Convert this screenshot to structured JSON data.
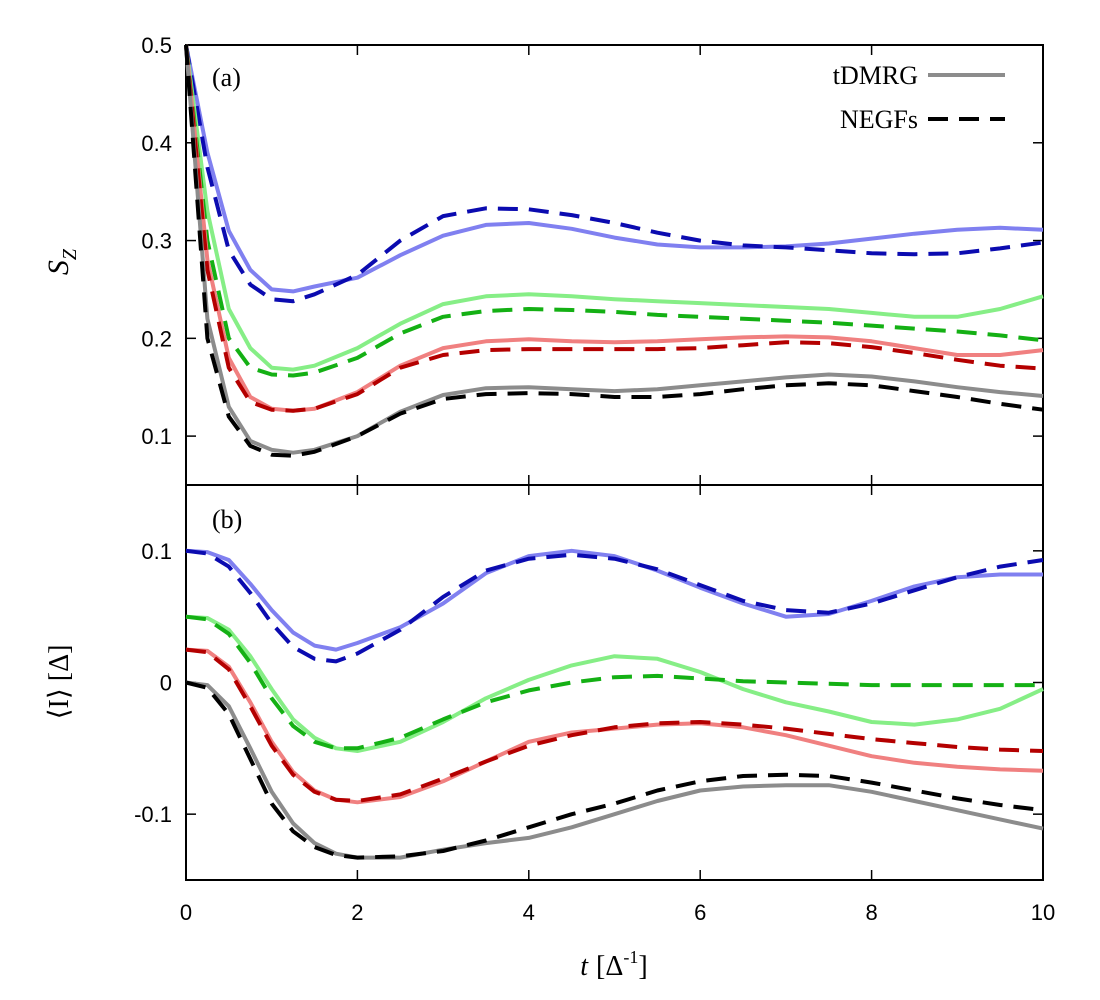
{
  "chart_data": [
    {
      "type": "line",
      "panel": "(a)",
      "ylabel": "S",
      "ylabel_sub": "Z",
      "xlim": [
        0,
        10
      ],
      "ylim": [
        0.05,
        0.5
      ],
      "xticks": [
        "0",
        "2",
        "4",
        "6",
        "8",
        "10"
      ],
      "yticks": [
        {
          "value": 0.1,
          "label": "0.1"
        },
        {
          "value": 0.2,
          "label": "0.2"
        },
        {
          "value": 0.3,
          "label": "0.3"
        },
        {
          "value": 0.4,
          "label": "0.4"
        },
        {
          "value": 0.5,
          "label": "0.5"
        }
      ],
      "legend": {
        "position": "top-right",
        "entries": [
          {
            "label": "tDMRG",
            "style": "solid",
            "color": "#8c8c8c"
          },
          {
            "label": "NEGFs",
            "style": "dashed",
            "color": "#000000"
          }
        ]
      },
      "x": [
        0,
        0.25,
        0.5,
        0.75,
        1,
        1.25,
        1.5,
        2,
        2.5,
        3,
        3.5,
        4,
        4.5,
        5,
        5.5,
        6,
        6.5,
        7,
        7.5,
        8,
        8.5,
        9,
        9.5,
        10
      ],
      "series": [
        {
          "name": "blue tDMRG",
          "color": "#8080f0",
          "style": "solid",
          "values": [
            0.5,
            0.39,
            0.31,
            0.27,
            0.25,
            0.248,
            0.253,
            0.262,
            0.285,
            0.305,
            0.316,
            0.318,
            0.312,
            0.303,
            0.296,
            0.293,
            0.293,
            0.294,
            0.297,
            0.302,
            0.307,
            0.311,
            0.313,
            0.311
          ]
        },
        {
          "name": "blue NEGFs",
          "color": "#0b0bb0",
          "style": "dashed",
          "values": [
            0.5,
            0.375,
            0.29,
            0.255,
            0.24,
            0.238,
            0.245,
            0.265,
            0.3,
            0.325,
            0.333,
            0.332,
            0.326,
            0.318,
            0.308,
            0.3,
            0.295,
            0.293,
            0.29,
            0.287,
            0.286,
            0.287,
            0.292,
            0.298
          ]
        },
        {
          "name": "green tDMRG",
          "color": "#86ee86",
          "style": "solid",
          "values": [
            0.5,
            0.33,
            0.23,
            0.19,
            0.17,
            0.168,
            0.172,
            0.19,
            0.215,
            0.235,
            0.243,
            0.245,
            0.243,
            0.24,
            0.238,
            0.236,
            0.234,
            0.232,
            0.23,
            0.226,
            0.222,
            0.222,
            0.23,
            0.243
          ]
        },
        {
          "name": "green NEGFs",
          "color": "#14b014",
          "style": "dashed",
          "values": [
            0.5,
            0.3,
            0.2,
            0.17,
            0.163,
            0.162,
            0.165,
            0.18,
            0.205,
            0.222,
            0.228,
            0.23,
            0.229,
            0.227,
            0.224,
            0.222,
            0.22,
            0.218,
            0.216,
            0.213,
            0.21,
            0.207,
            0.203,
            0.198
          ]
        },
        {
          "name": "red tDMRG",
          "color": "#f08080",
          "style": "solid",
          "values": [
            0.5,
            0.28,
            0.18,
            0.14,
            0.128,
            0.126,
            0.128,
            0.145,
            0.172,
            0.19,
            0.197,
            0.199,
            0.197,
            0.196,
            0.197,
            0.199,
            0.201,
            0.202,
            0.201,
            0.197,
            0.19,
            0.183,
            0.183,
            0.188
          ]
        },
        {
          "name": "red NEGFs",
          "color": "#b40000",
          "style": "dashed",
          "values": [
            0.5,
            0.27,
            0.17,
            0.135,
            0.127,
            0.126,
            0.128,
            0.143,
            0.17,
            0.183,
            0.188,
            0.189,
            0.189,
            0.189,
            0.189,
            0.19,
            0.193,
            0.196,
            0.195,
            0.191,
            0.185,
            0.178,
            0.172,
            0.169
          ]
        },
        {
          "name": "gray tDMRG",
          "color": "#8c8c8c",
          "style": "solid",
          "values": [
            0.5,
            0.22,
            0.13,
            0.095,
            0.086,
            0.083,
            0.086,
            0.1,
            0.125,
            0.142,
            0.149,
            0.15,
            0.148,
            0.146,
            0.148,
            0.152,
            0.156,
            0.16,
            0.163,
            0.161,
            0.156,
            0.15,
            0.145,
            0.141
          ]
        },
        {
          "name": "gray NEGFs",
          "color": "#000000",
          "style": "dashed",
          "values": [
            0.5,
            0.2,
            0.12,
            0.09,
            0.081,
            0.08,
            0.084,
            0.1,
            0.123,
            0.138,
            0.143,
            0.144,
            0.143,
            0.14,
            0.14,
            0.143,
            0.148,
            0.152,
            0.154,
            0.152,
            0.146,
            0.14,
            0.133,
            0.127
          ]
        }
      ]
    },
    {
      "type": "line",
      "panel": "(b)",
      "ylabel": "⟨I⟩  [Δ]",
      "xlabel": "t",
      "xlabel_unit": "[Δ",
      "xlabel_sup": "-1",
      "xlabel_close": "]",
      "xlim": [
        0,
        10
      ],
      "ylim": [
        -0.15,
        0.15
      ],
      "xticks": [
        "0",
        "2",
        "4",
        "6",
        "8",
        "10"
      ],
      "yticks": [
        {
          "value": -0.1,
          "label": "-0.1"
        },
        {
          "value": 0,
          "label": "0"
        },
        {
          "value": 0.1,
          "label": "0.1"
        }
      ],
      "x": [
        0,
        0.25,
        0.5,
        0.75,
        1,
        1.25,
        1.5,
        1.75,
        2,
        2.5,
        3,
        3.5,
        4,
        4.5,
        5,
        5.5,
        6,
        6.5,
        7,
        7.5,
        8,
        8.5,
        9,
        9.5,
        10
      ],
      "series": [
        {
          "name": "blue tDMRG",
          "color": "#8080f0",
          "style": "solid",
          "values": [
            0.1,
            0.099,
            0.093,
            0.075,
            0.055,
            0.038,
            0.028,
            0.025,
            0.03,
            0.042,
            0.06,
            0.083,
            0.096,
            0.1,
            0.096,
            0.085,
            0.072,
            0.06,
            0.05,
            0.052,
            0.062,
            0.073,
            0.08,
            0.082,
            0.082
          ]
        },
        {
          "name": "blue NEGFs",
          "color": "#0b0bb0",
          "style": "dashed",
          "values": [
            0.1,
            0.098,
            0.088,
            0.068,
            0.045,
            0.027,
            0.018,
            0.016,
            0.022,
            0.04,
            0.065,
            0.085,
            0.094,
            0.097,
            0.094,
            0.086,
            0.074,
            0.062,
            0.055,
            0.053,
            0.06,
            0.07,
            0.08,
            0.088,
            0.093
          ]
        },
        {
          "name": "green tDMRG",
          "color": "#86ee86",
          "style": "solid",
          "values": [
            0.05,
            0.049,
            0.04,
            0.02,
            -0.005,
            -0.028,
            -0.042,
            -0.05,
            -0.052,
            -0.045,
            -0.03,
            -0.012,
            0.002,
            0.013,
            0.02,
            0.018,
            0.008,
            -0.005,
            -0.015,
            -0.022,
            -0.03,
            -0.032,
            -0.028,
            -0.02,
            -0.005
          ]
        },
        {
          "name": "green NEGFs",
          "color": "#14b014",
          "style": "dashed",
          "values": [
            0.05,
            0.048,
            0.037,
            0.015,
            -0.012,
            -0.033,
            -0.045,
            -0.05,
            -0.05,
            -0.042,
            -0.028,
            -0.015,
            -0.006,
            0.0,
            0.004,
            0.005,
            0.003,
            0.001,
            0.0,
            -0.001,
            -0.002,
            -0.002,
            -0.002,
            -0.002,
            -0.002
          ]
        },
        {
          "name": "red tDMRG",
          "color": "#f08080",
          "style": "solid",
          "values": [
            0.025,
            0.024,
            0.012,
            -0.015,
            -0.045,
            -0.068,
            -0.082,
            -0.089,
            -0.091,
            -0.087,
            -0.075,
            -0.06,
            -0.045,
            -0.038,
            -0.035,
            -0.032,
            -0.031,
            -0.034,
            -0.04,
            -0.048,
            -0.056,
            -0.061,
            -0.064,
            -0.066,
            -0.067
          ]
        },
        {
          "name": "red NEGFs",
          "color": "#b40000",
          "style": "dashed",
          "values": [
            0.025,
            0.023,
            0.01,
            -0.018,
            -0.048,
            -0.07,
            -0.083,
            -0.089,
            -0.09,
            -0.085,
            -0.073,
            -0.06,
            -0.048,
            -0.04,
            -0.034,
            -0.031,
            -0.03,
            -0.032,
            -0.035,
            -0.039,
            -0.043,
            -0.046,
            -0.049,
            -0.051,
            -0.052
          ]
        },
        {
          "name": "gray tDMRG",
          "color": "#8c8c8c",
          "style": "solid",
          "values": [
            0.0,
            -0.002,
            -0.018,
            -0.05,
            -0.083,
            -0.107,
            -0.122,
            -0.13,
            -0.133,
            -0.133,
            -0.127,
            -0.122,
            -0.118,
            -0.11,
            -0.1,
            -0.09,
            -0.082,
            -0.079,
            -0.078,
            -0.078,
            -0.083,
            -0.09,
            -0.097,
            -0.104,
            -0.111
          ]
        },
        {
          "name": "gray NEGFs",
          "color": "#000000",
          "style": "dashed",
          "values": [
            0.0,
            -0.004,
            -0.024,
            -0.058,
            -0.092,
            -0.113,
            -0.125,
            -0.131,
            -0.133,
            -0.132,
            -0.128,
            -0.12,
            -0.11,
            -0.1,
            -0.092,
            -0.082,
            -0.075,
            -0.071,
            -0.07,
            -0.071,
            -0.076,
            -0.082,
            -0.088,
            -0.093,
            -0.097
          ]
        }
      ]
    }
  ]
}
